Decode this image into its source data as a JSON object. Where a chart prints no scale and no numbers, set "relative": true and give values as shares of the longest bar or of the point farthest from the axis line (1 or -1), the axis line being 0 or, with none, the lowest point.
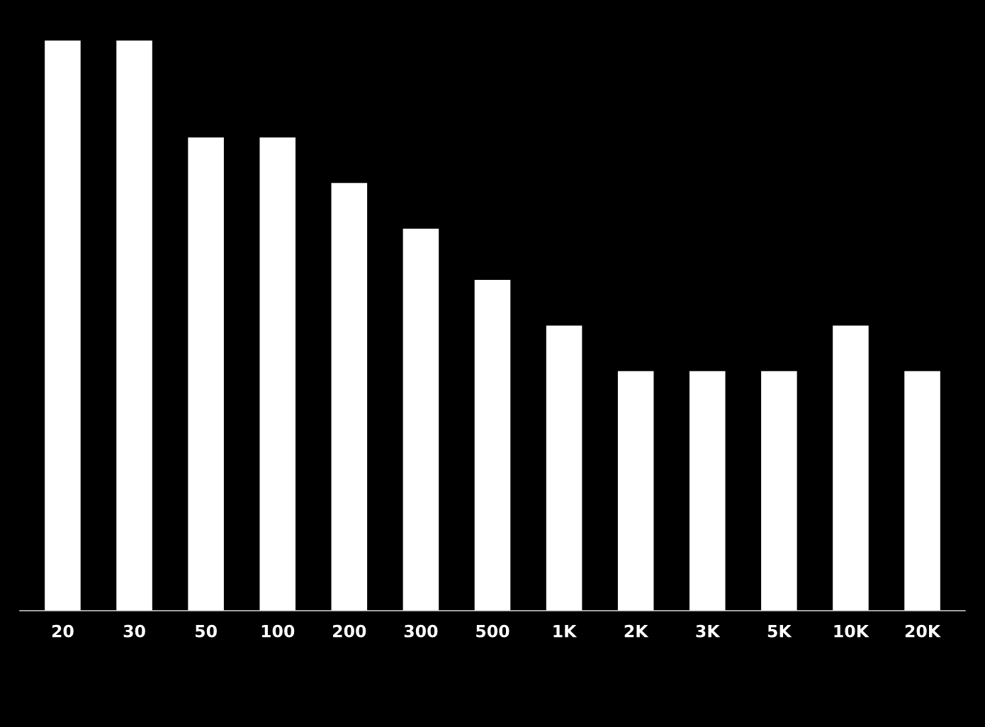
{
  "chart_data": {
    "type": "bar",
    "relative": true,
    "categories": [
      "20",
      "30",
      "50",
      "100",
      "200",
      "300",
      "500",
      "1K",
      "2K",
      "3K",
      "5K",
      "10K",
      "20K"
    ],
    "values": [
      1,
      1,
      0.83,
      0.83,
      0.75,
      0.67,
      0.58,
      0.5,
      0.42,
      0.42,
      0.42,
      0.5,
      0.42
    ],
    "color": "#ffffff",
    "grid": false,
    "legend": false
  }
}
